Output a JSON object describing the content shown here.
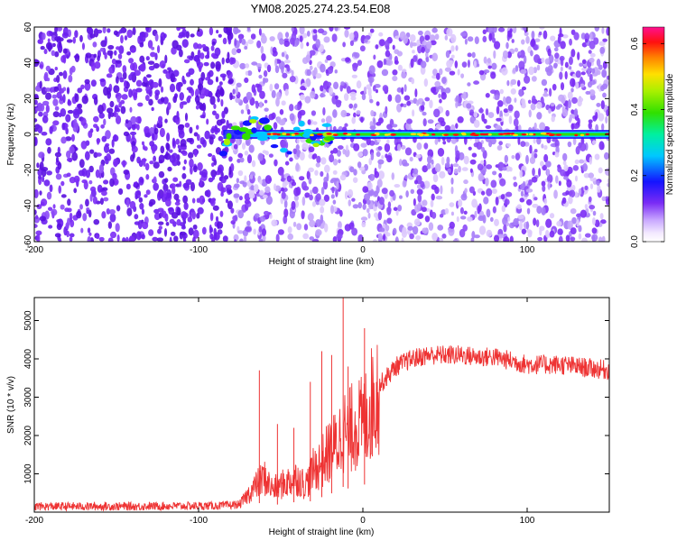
{
  "figure": {
    "title": "YM08.2025.274.23.54.E08"
  },
  "chart_data": [
    {
      "type": "heatmap",
      "title": "YM08.2025.274.23.54.E08",
      "xlabel": "Height of straight line (km)",
      "ylabel": "Frequency (Hz)",
      "xlim": [
        -200,
        150
      ],
      "ylim": [
        -60,
        60
      ],
      "xticks": [
        -200,
        -100,
        0,
        100
      ],
      "yticks": [
        -60,
        -40,
        -20,
        0,
        20,
        40,
        60
      ],
      "colorbar": {
        "label": "Normalized spectral amplitude",
        "range": [
          0,
          0.65
        ],
        "ticks": [
          0.0,
          0.2,
          0.4,
          0.6
        ],
        "tick_labels": [
          "0.0",
          "0.2",
          "0.4",
          "0.6"
        ]
      },
      "signal_band": {
        "frequency_hz": 0,
        "starts_km": -85,
        "ends_km": 150,
        "peak_amplitude": 0.62,
        "background_amplitude": 0.05
      }
    },
    {
      "type": "line",
      "xlabel": "Height of straight line (km)",
      "ylabel": "SNR (10 * v/v)",
      "xlim": [
        -200,
        150
      ],
      "ylim": [
        0,
        5600
      ],
      "xticks": [
        -200,
        -100,
        0,
        100
      ],
      "yticks": [
        1000,
        2000,
        3000,
        4000,
        5000
      ],
      "color": "#ee3333",
      "series": [
        {
          "name": "SNR",
          "x": [
            -200,
            -180,
            -160,
            -140,
            -120,
            -100,
            -85,
            -75,
            -65,
            -60,
            -55,
            -50,
            -45,
            -40,
            -35,
            -30,
            -25,
            -20,
            -15,
            -12,
            -10,
            -5,
            0,
            5,
            10,
            20,
            30,
            40,
            50,
            60,
            70,
            80,
            90,
            100,
            110,
            120,
            130,
            140,
            150
          ],
          "y": [
            150,
            150,
            150,
            150,
            160,
            160,
            170,
            200,
            700,
            900,
            600,
            700,
            800,
            900,
            700,
            1100,
            1300,
            1600,
            1800,
            2200,
            2000,
            2300,
            2300,
            2800,
            3300,
            3800,
            4000,
            4100,
            4100,
            4100,
            4050,
            4050,
            3950,
            3850,
            3850,
            3850,
            3800,
            3750,
            3700
          ]
        }
      ],
      "spikes": [
        {
          "x": -63,
          "y": 3700
        },
        {
          "x": -52,
          "y": 2300
        },
        {
          "x": -42,
          "y": 2200
        },
        {
          "x": -32,
          "y": 3400
        },
        {
          "x": -25,
          "y": 4200
        },
        {
          "x": -19,
          "y": 4100
        },
        {
          "x": -12,
          "y": 5600
        },
        {
          "x": -9,
          "y": 3800
        },
        {
          "x": 1,
          "y": 4800
        }
      ]
    }
  ]
}
